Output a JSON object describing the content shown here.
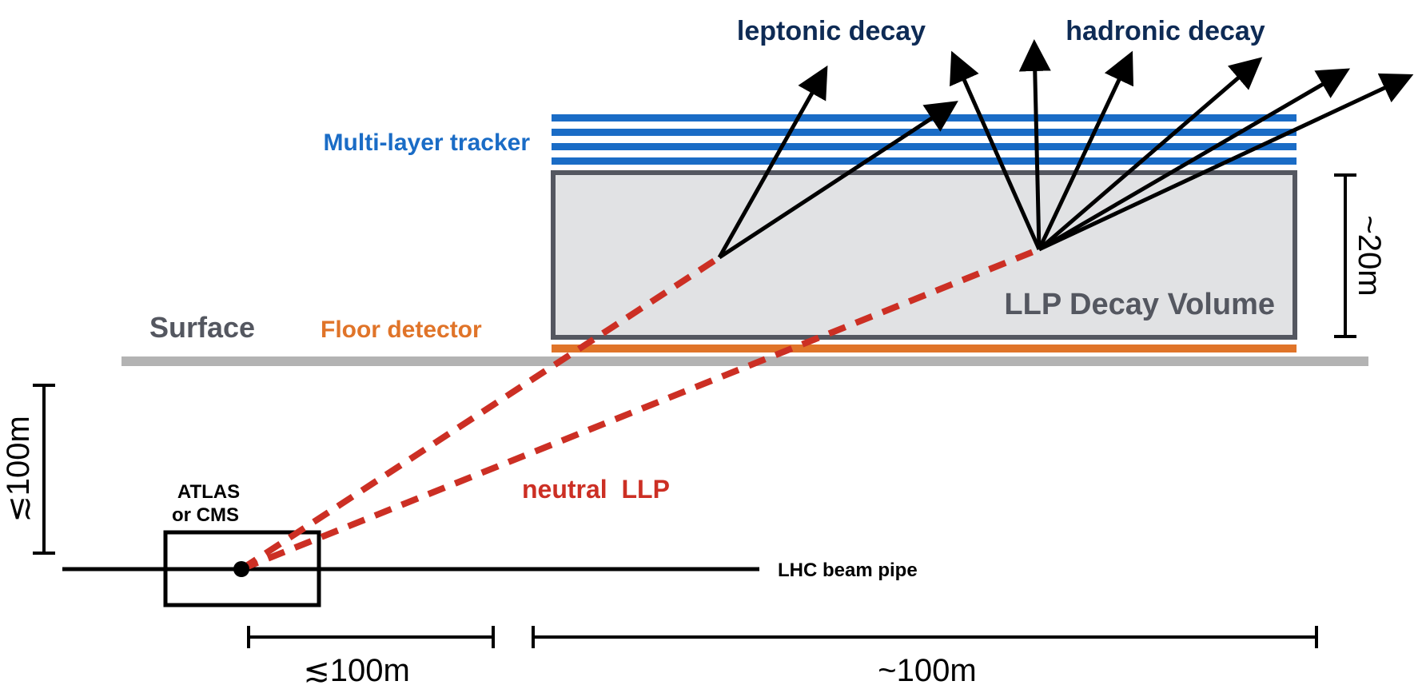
{
  "labels": {
    "leptonic": "leptonic decay",
    "hadronic": "hadronic decay",
    "tracker": "Multi-layer tracker",
    "surface": "Surface",
    "floor": "Floor detector",
    "volume": "LLP Decay Volume",
    "height_scale": "~20m",
    "depth_scale": "≲100m",
    "atlas_line1": "ATLAS",
    "atlas_line2": "or CMS",
    "neutral_llp": "neutral  LLP",
    "beam_pipe": "LHC beam pipe",
    "horizontal_near": "≲100m",
    "horizontal_far": "~100m"
  },
  "colors": {
    "tracker": "#1a6cc6",
    "floor": "#e07429",
    "llp": "#cc2f24",
    "volume_fill": "#e1e2e4",
    "volume_stroke": "#545760",
    "surface": "#b3b3b3",
    "heading": "#0e2b55",
    "surface_text": "#545760",
    "black": "#000000"
  }
}
